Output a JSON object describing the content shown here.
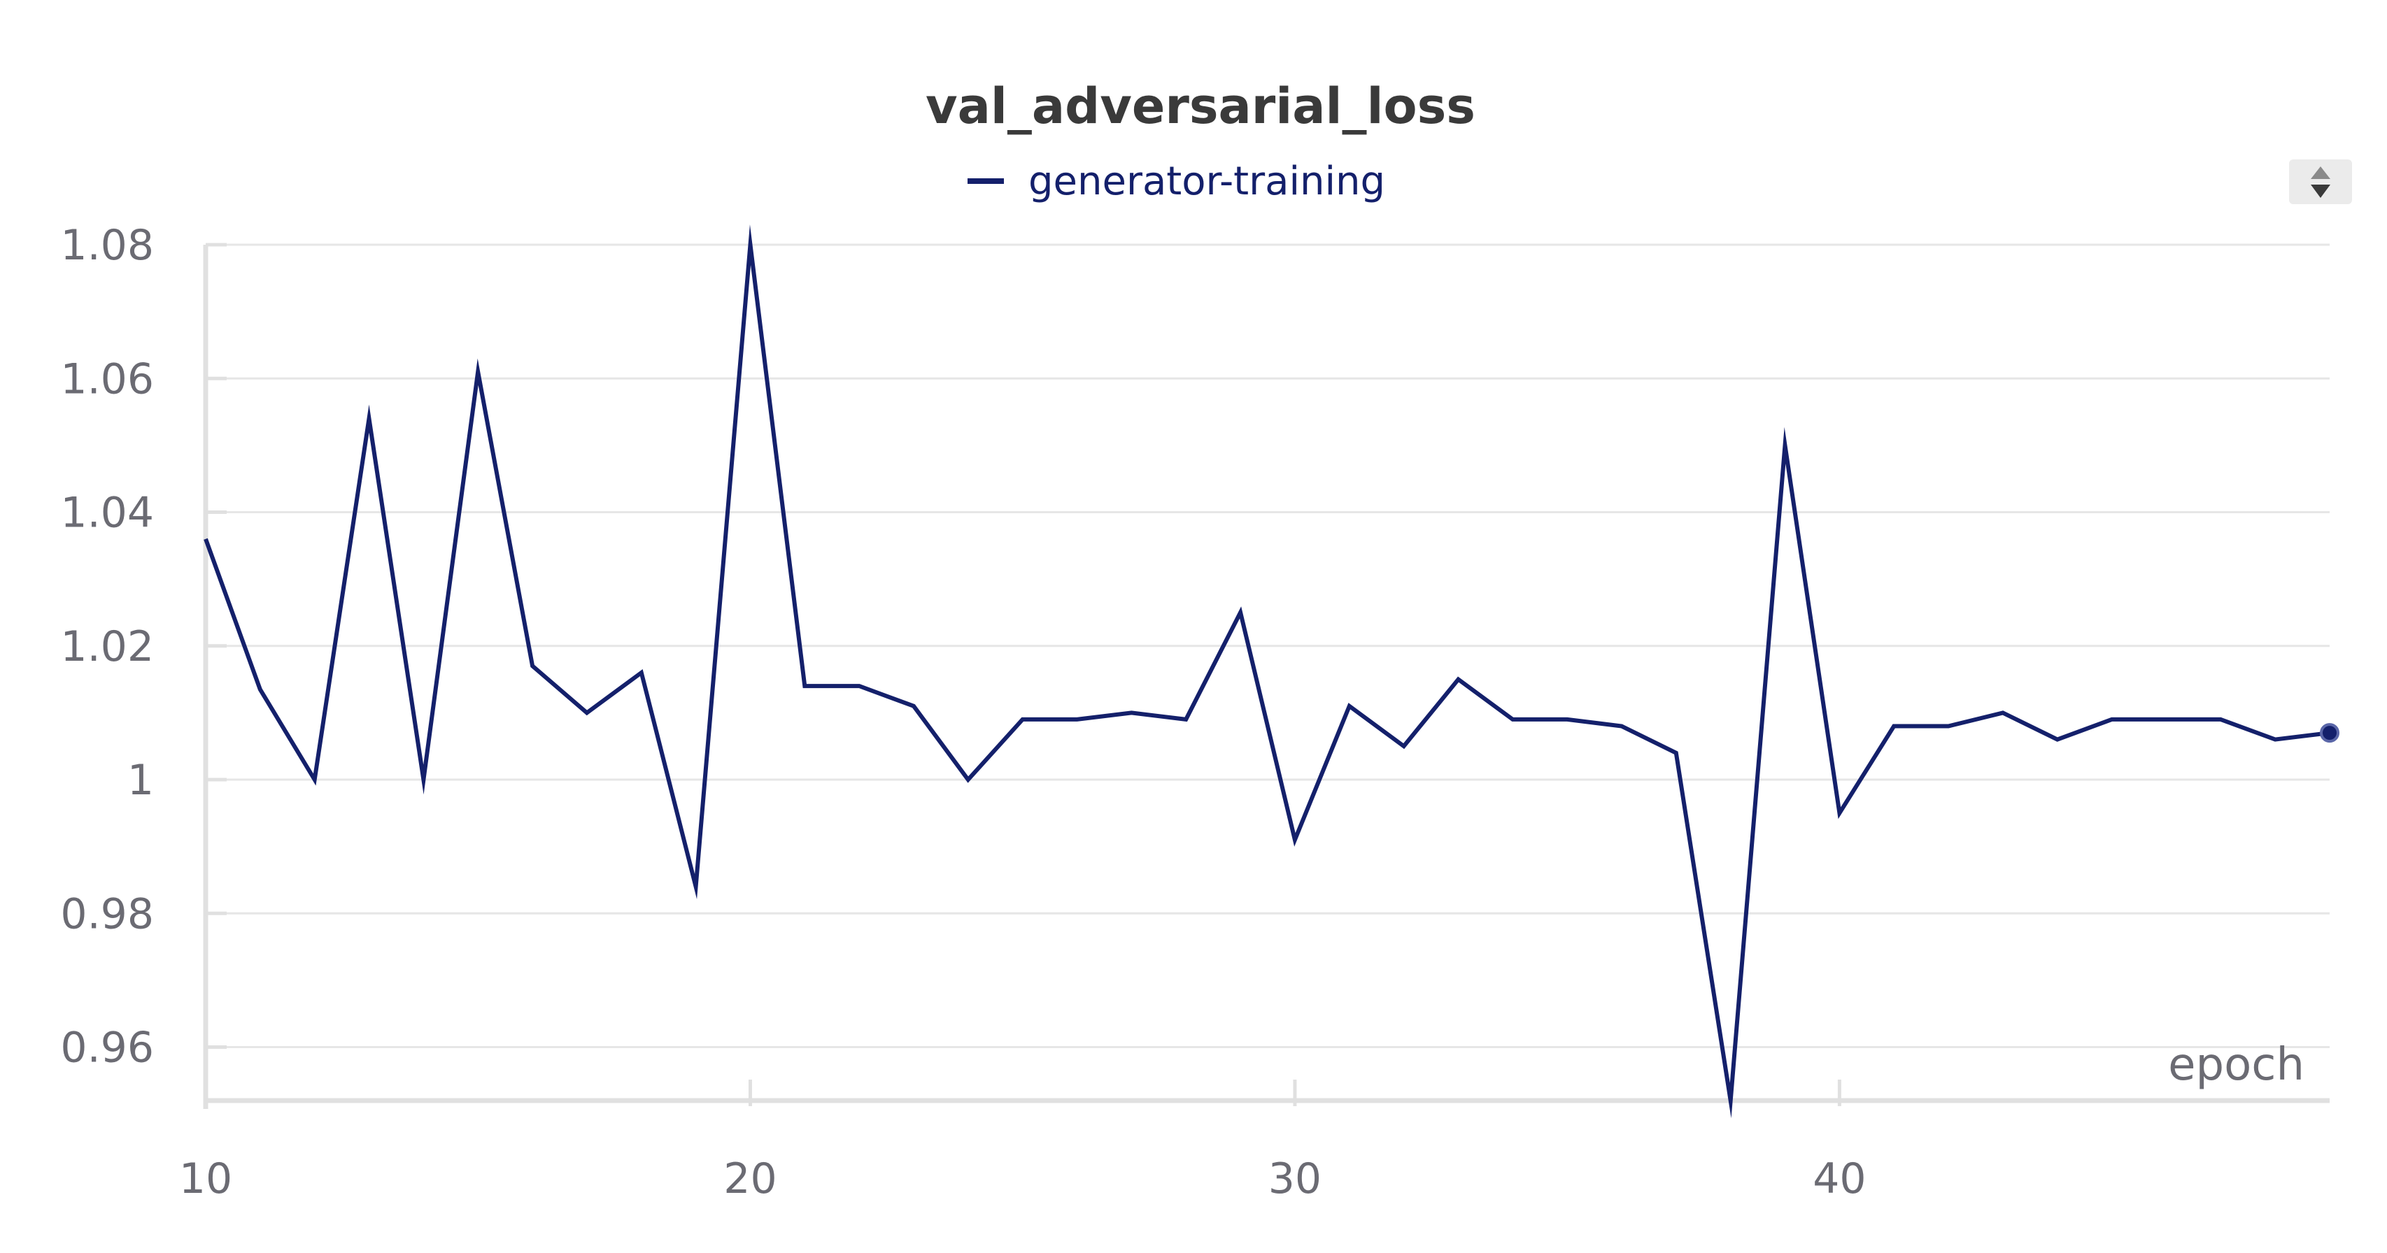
{
  "chart_data": {
    "type": "line",
    "title": "val_adversarial_loss",
    "xlabel": "epoch",
    "ylabel": "",
    "xlim": [
      10,
      49
    ],
    "ylim": [
      0.952,
      1.08
    ],
    "x_ticks": [
      10,
      20,
      30,
      40
    ],
    "y_ticks": [
      0.96,
      0.98,
      1,
      1.02,
      1.04,
      1.06,
      1.08
    ],
    "y_tick_labels": [
      "0.96",
      "0.98",
      "1",
      "1.02",
      "1.04",
      "1.06",
      "1.08"
    ],
    "x_tick_labels": [
      "10",
      "20",
      "30",
      "40"
    ],
    "grid": true,
    "legend": "top-center",
    "series": [
      {
        "name": "generator-training",
        "color": "#14206b",
        "x": [
          10,
          11,
          12,
          13,
          14,
          15,
          16,
          17,
          18,
          19,
          20,
          21,
          22,
          23,
          24,
          25,
          26,
          27,
          28,
          29,
          30,
          31,
          32,
          33,
          34,
          35,
          36,
          37,
          38,
          39,
          40,
          41,
          42,
          43,
          44,
          45,
          46,
          47,
          48,
          49
        ],
        "y": [
          1.036,
          1.0135,
          1.0,
          1.054,
          1.0,
          1.061,
          1.017,
          1.01,
          1.016,
          0.984,
          1.08,
          1.014,
          1.014,
          1.011,
          1.0,
          1.009,
          1.009,
          1.01,
          1.009,
          1.025,
          0.991,
          1.011,
          1.005,
          1.015,
          1.009,
          1.009,
          1.008,
          1.004,
          0.952,
          1.05,
          0.995,
          1.008,
          1.008,
          1.01,
          1.006,
          1.009,
          1.009,
          1.009,
          1.006,
          1.007
        ]
      }
    ]
  }
}
